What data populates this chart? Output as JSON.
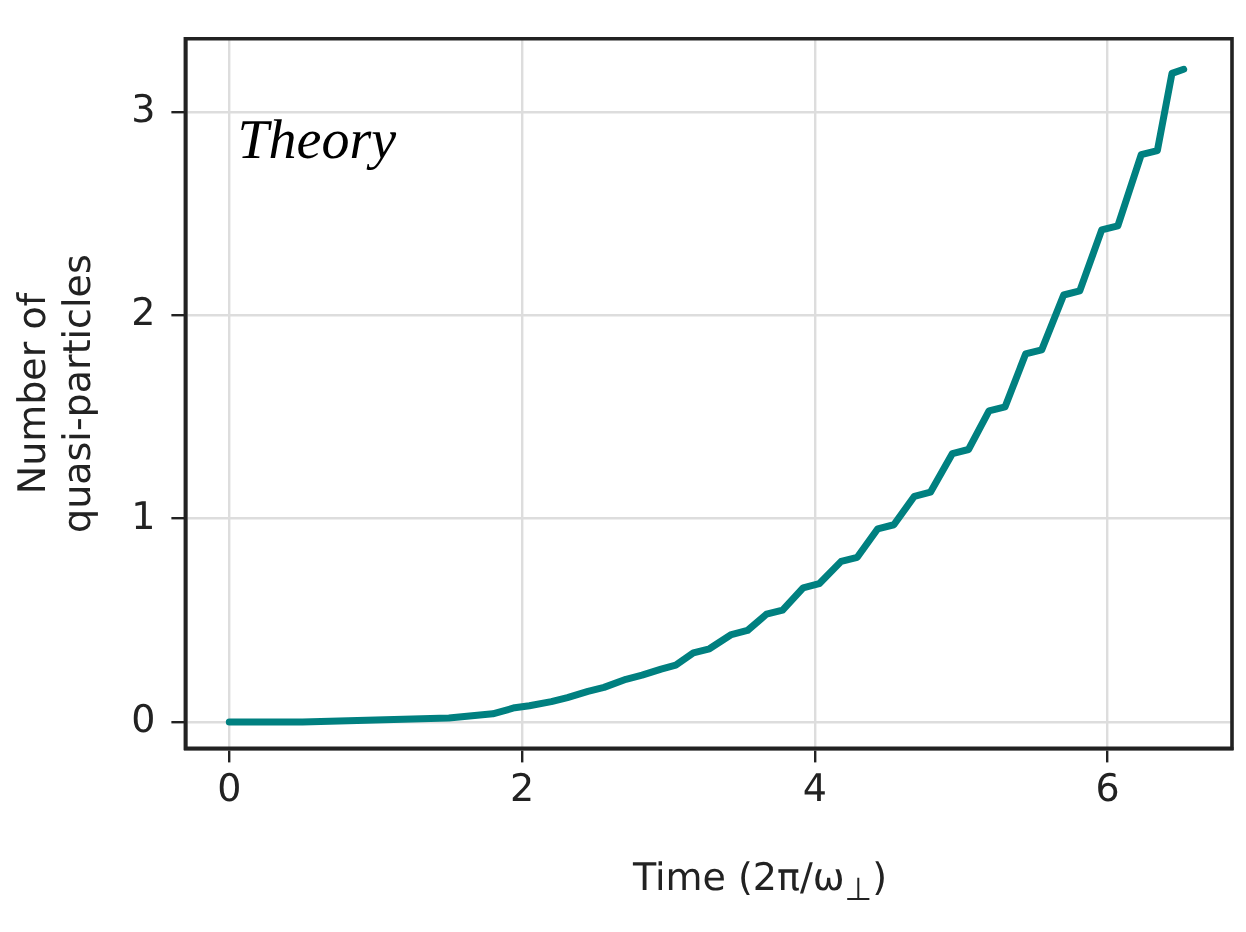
{
  "chart_data": {
    "type": "line",
    "xlabel": "Time (2π/ω$_{⊥}$)",
    "ylabel": "Number of quasi-particles",
    "annotations": [
      "Theory"
    ],
    "xlim": [
      -0.3,
      6.85
    ],
    "ylim": [
      -0.13,
      3.36
    ],
    "xticks": [
      0,
      2,
      4,
      6
    ],
    "yticks": [
      0,
      1,
      2,
      3
    ],
    "grid": true,
    "legend": false,
    "marker": "none",
    "line_style": "solid",
    "series": [
      {
        "color": "#008080",
        "x": [
          0,
          0.5,
          1.0,
          1.5,
          1.8,
          1.95,
          2.05,
          2.2,
          2.31,
          2.45,
          2.56,
          2.71,
          2.82,
          2.95,
          3.05,
          3.17,
          3.28,
          3.43,
          3.54,
          3.67,
          3.78,
          3.92,
          4.03,
          4.18,
          4.29,
          4.43,
          4.54,
          4.68,
          4.79,
          4.94,
          5.05,
          5.19,
          5.3,
          5.44,
          5.55,
          5.7,
          5.81,
          5.96,
          6.07,
          6.23,
          6.34,
          6.44,
          6.52
        ],
        "values": [
          0,
          0,
          0.01,
          0.02,
          0.04,
          0.07,
          0.08,
          0.1,
          0.12,
          0.15,
          0.17,
          0.21,
          0.23,
          0.26,
          0.28,
          0.34,
          0.36,
          0.43,
          0.45,
          0.53,
          0.55,
          0.66,
          0.68,
          0.79,
          0.81,
          0.95,
          0.97,
          1.11,
          1.13,
          1.32,
          1.34,
          1.53,
          1.55,
          1.81,
          1.83,
          2.1,
          2.12,
          2.42,
          2.44,
          2.79,
          2.81,
          3.19,
          3.21
        ]
      }
    ]
  }
}
